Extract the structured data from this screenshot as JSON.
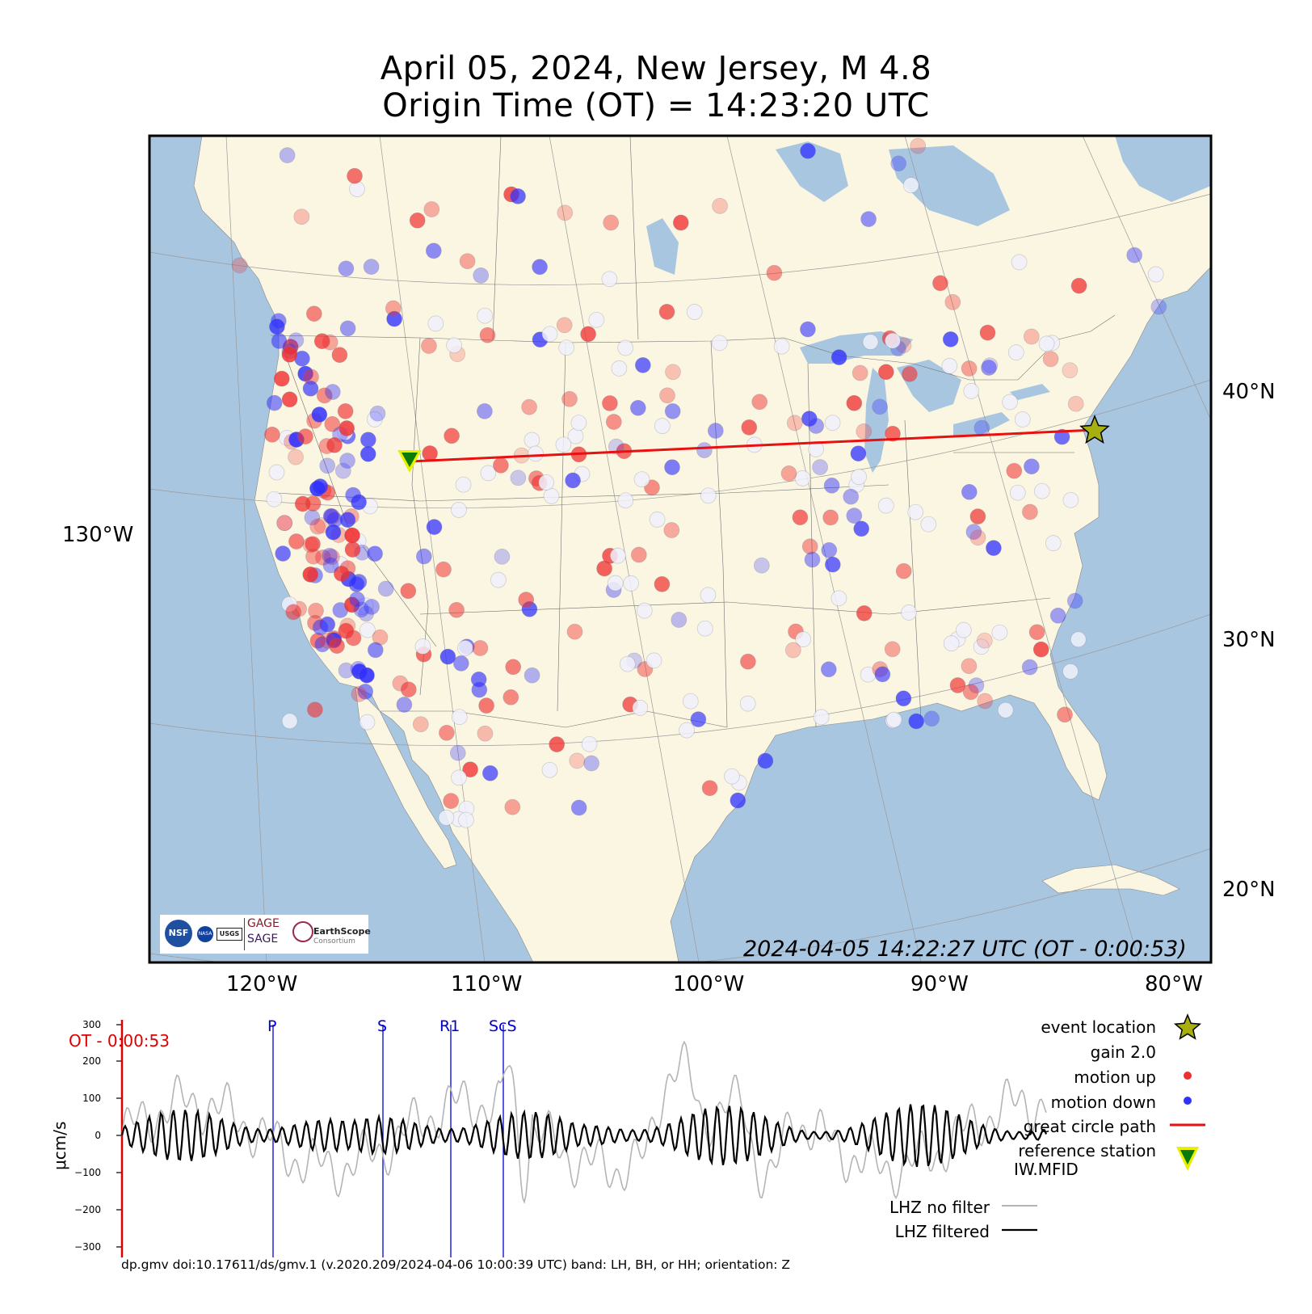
{
  "title": {
    "line1": "April 05, 2024, New Jersey, M 4.8",
    "line2": "Origin Time (OT) = 14:23:20 UTC"
  },
  "map": {
    "lat_labels": [
      "40°N",
      "30°N",
      "20°N"
    ],
    "lon_label_left": "130°W",
    "lon_labels_bottom": [
      "120°W",
      "110°W",
      "100°W",
      "90°W",
      "80°W"
    ],
    "timestamp": "2024-04-05 14:22:27 UTC (OT - 0:00:53)",
    "event": {
      "name": "event location",
      "lon": -74.8,
      "lat": 40.7
    },
    "reference_station": {
      "code": "IW.MFID",
      "lon": -112.0,
      "lat": 43.0
    },
    "colors": {
      "ocean": "#a9c6e1",
      "land": "#fbf6e1",
      "motion_up": "#f03030",
      "motion_down": "#3030ff",
      "great_circle": "#e81010",
      "event_star": "#a8b010",
      "station_triangle": "#0a7a0a",
      "station_outline": "#e8f000"
    },
    "logos": [
      "NSF",
      "NASA",
      "USGS",
      "GAGE",
      "SAGE",
      "EarthScope",
      "Consortium"
    ]
  },
  "seismogram": {
    "y_axis_label": "μcm/s",
    "y_ticks": [
      "300",
      "200",
      "100",
      "0",
      "−100",
      "−200",
      "−300"
    ],
    "ot_label": "OT - 0:00:53",
    "phases": [
      "P",
      "S",
      "R1",
      "ScS"
    ],
    "legend": {
      "event_location": "event location",
      "gain": "gain  2.0",
      "motion_up": "motion up",
      "motion_down": "motion down",
      "great_circle_path": "great circle path",
      "reference_station": "reference station",
      "station_code": "IW.MFID",
      "lhz_no_filter": "LHZ no filter",
      "lhz_filtered": "LHZ filtered"
    },
    "colors": {
      "unfiltered": "#b4b4b4",
      "filtered": "#000000",
      "phase_lines": "#0000dd",
      "ot_marker": "#dd0000"
    }
  },
  "footer": "dp.gmv doi:10.17611/ds/gmv.1 (v.2020.209/2024-04-06 10:00:39 UTC) band: LH, BH, or HH; orientation: Z"
}
